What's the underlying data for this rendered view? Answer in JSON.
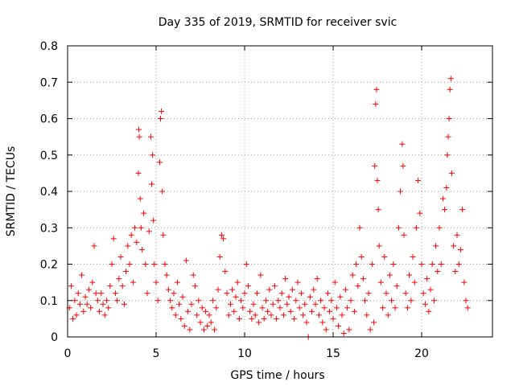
{
  "chart_data": {
    "type": "scatter",
    "title": "Day 335 of 2019, SRMTID for receiver svic",
    "xlabel": "GPS time / hours",
    "ylabel": "SRMTID / TECUs",
    "xlim": [
      0,
      24
    ],
    "ylim": [
      0,
      0.8
    ],
    "xticks": [
      0,
      5,
      10,
      15,
      20
    ],
    "xtick_labels": [
      "0",
      "5",
      "10",
      "15",
      "20"
    ],
    "yticks": [
      0,
      0.1,
      0.2,
      0.3,
      0.4,
      0.5,
      0.6,
      0.7,
      0.8
    ],
    "ytick_labels": [
      "0",
      "0.1",
      "0.2",
      "0.3",
      "0.4",
      "0.5",
      "0.6",
      "0.7",
      "0.8"
    ],
    "grid": true,
    "marker": "+",
    "color": "#ff0000",
    "series": [
      {
        "name": "SRMTID",
        "points": [
          [
            0.1,
            0.08
          ],
          [
            0.2,
            0.14
          ],
          [
            0.3,
            0.05
          ],
          [
            0.4,
            0.1
          ],
          [
            0.5,
            0.06
          ],
          [
            0.6,
            0.12
          ],
          [
            0.7,
            0.09
          ],
          [
            0.8,
            0.17
          ],
          [
            0.9,
            0.07
          ],
          [
            1.0,
            0.11
          ],
          [
            1.1,
            0.09
          ],
          [
            1.2,
            0.13
          ],
          [
            1.3,
            0.08
          ],
          [
            1.4,
            0.15
          ],
          [
            1.5,
            0.25
          ],
          [
            1.6,
            0.12
          ],
          [
            1.7,
            0.1
          ],
          [
            1.8,
            0.07
          ],
          [
            1.9,
            0.12
          ],
          [
            2.0,
            0.09
          ],
          [
            2.1,
            0.06
          ],
          [
            2.2,
            0.1
          ],
          [
            2.3,
            0.08
          ],
          [
            2.4,
            0.14
          ],
          [
            2.5,
            0.2
          ],
          [
            2.6,
            0.27
          ],
          [
            2.7,
            0.12
          ],
          [
            2.8,
            0.1
          ],
          [
            2.9,
            0.16
          ],
          [
            3.0,
            0.22
          ],
          [
            3.1,
            0.14
          ],
          [
            3.2,
            0.09
          ],
          [
            3.3,
            0.18
          ],
          [
            3.4,
            0.25
          ],
          [
            3.5,
            0.2
          ],
          [
            3.6,
            0.28
          ],
          [
            3.7,
            0.15
          ],
          [
            3.8,
            0.3
          ],
          [
            3.9,
            0.26
          ],
          [
            4.0,
            0.45
          ],
          [
            4.02,
            0.57
          ],
          [
            4.05,
            0.55
          ],
          [
            4.1,
            0.38
          ],
          [
            4.15,
            0.3
          ],
          [
            4.2,
            0.24
          ],
          [
            4.3,
            0.34
          ],
          [
            4.4,
            0.2
          ],
          [
            4.5,
            0.12
          ],
          [
            4.6,
            0.29
          ],
          [
            4.7,
            0.55
          ],
          [
            4.75,
            0.42
          ],
          [
            4.8,
            0.5
          ],
          [
            4.85,
            0.32
          ],
          [
            4.9,
            0.2
          ],
          [
            5.0,
            0.15
          ],
          [
            5.1,
            0.1
          ],
          [
            5.2,
            0.48
          ],
          [
            5.25,
            0.6
          ],
          [
            5.3,
            0.62
          ],
          [
            5.35,
            0.4
          ],
          [
            5.4,
            0.28
          ],
          [
            5.5,
            0.2
          ],
          [
            5.6,
            0.17
          ],
          [
            5.7,
            0.13
          ],
          [
            5.8,
            0.1
          ],
          [
            5.9,
            0.08
          ],
          [
            6.0,
            0.12
          ],
          [
            6.1,
            0.06
          ],
          [
            6.2,
            0.15
          ],
          [
            6.3,
            0.09
          ],
          [
            6.4,
            0.05
          ],
          [
            6.5,
            0.11
          ],
          [
            6.6,
            0.03
          ],
          [
            6.7,
            0.21
          ],
          [
            6.8,
            0.07
          ],
          [
            6.9,
            0.02
          ],
          [
            7.0,
            0.09
          ],
          [
            7.1,
            0.17
          ],
          [
            7.2,
            0.14
          ],
          [
            7.3,
            0.06
          ],
          [
            7.4,
            0.1
          ],
          [
            7.5,
            0.04
          ],
          [
            7.6,
            0.08
          ],
          [
            7.7,
            0.02
          ],
          [
            7.8,
            0.07
          ],
          [
            7.9,
            0.03
          ],
          [
            8.0,
            0.06
          ],
          [
            8.1,
            0.04
          ],
          [
            8.2,
            0.1
          ],
          [
            8.3,
            0.02
          ],
          [
            8.4,
            0.08
          ],
          [
            8.5,
            0.13
          ],
          [
            8.6,
            0.22
          ],
          [
            8.7,
            0.28
          ],
          [
            8.8,
            0.27
          ],
          [
            8.9,
            0.18
          ],
          [
            9.0,
            0.12
          ],
          [
            9.1,
            0.06
          ],
          [
            9.2,
            0.09
          ],
          [
            9.3,
            0.13
          ],
          [
            9.4,
            0.07
          ],
          [
            9.5,
            0.11
          ],
          [
            9.6,
            0.15
          ],
          [
            9.7,
            0.05
          ],
          [
            9.8,
            0.1
          ],
          [
            9.9,
            0.08
          ],
          [
            10.0,
            0.12
          ],
          [
            10.1,
            0.2
          ],
          [
            10.2,
            0.14
          ],
          [
            10.3,
            0.07
          ],
          [
            10.4,
            0.05
          ],
          [
            10.5,
            0.09
          ],
          [
            10.6,
            0.06
          ],
          [
            10.7,
            0.12
          ],
          [
            10.8,
            0.04
          ],
          [
            10.9,
            0.17
          ],
          [
            11.0,
            0.08
          ],
          [
            11.1,
            0.05
          ],
          [
            11.2,
            0.1
          ],
          [
            11.3,
            0.07
          ],
          [
            11.4,
            0.13
          ],
          [
            11.5,
            0.06
          ],
          [
            11.6,
            0.09
          ],
          [
            11.7,
            0.14
          ],
          [
            11.8,
            0.05
          ],
          [
            11.9,
            0.1
          ],
          [
            12.0,
            0.08
          ],
          [
            12.1,
            0.12
          ],
          [
            12.2,
            0.06
          ],
          [
            12.3,
            0.16
          ],
          [
            12.4,
            0.09
          ],
          [
            12.5,
            0.11
          ],
          [
            12.6,
            0.07
          ],
          [
            12.7,
            0.13
          ],
          [
            12.8,
            0.05
          ],
          [
            12.9,
            0.1
          ],
          [
            13.0,
            0.15
          ],
          [
            13.1,
            0.08
          ],
          [
            13.2,
            0.12
          ],
          [
            13.3,
            0.06
          ],
          [
            13.4,
            0.09
          ],
          [
            13.5,
            0.04
          ],
          [
            13.6,
            0.0
          ],
          [
            13.7,
            0.11
          ],
          [
            13.8,
            0.07
          ],
          [
            13.9,
            0.13
          ],
          [
            14.0,
            0.09
          ],
          [
            14.1,
            0.16
          ],
          [
            14.2,
            0.06
          ],
          [
            14.3,
            0.1
          ],
          [
            14.4,
            0.04
          ],
          [
            14.5,
            0.08
          ],
          [
            14.6,
            0.02
          ],
          [
            14.7,
            0.12
          ],
          [
            14.8,
            0.07
          ],
          [
            14.9,
            0.1
          ],
          [
            15.0,
            0.05
          ],
          [
            15.1,
            0.15
          ],
          [
            15.2,
            0.08
          ],
          [
            15.3,
            0.03
          ],
          [
            15.4,
            0.11
          ],
          [
            15.5,
            0.06
          ],
          [
            15.6,
            0.01
          ],
          [
            15.7,
            0.13
          ],
          [
            15.8,
            0.08
          ],
          [
            15.9,
            0.02
          ],
          [
            16.0,
            0.1
          ],
          [
            16.1,
            0.17
          ],
          [
            16.2,
            0.07
          ],
          [
            16.3,
            0.2
          ],
          [
            16.4,
            0.14
          ],
          [
            16.5,
            0.3
          ],
          [
            16.6,
            0.22
          ],
          [
            16.7,
            0.16
          ],
          [
            16.8,
            0.1
          ],
          [
            16.9,
            0.06
          ],
          [
            17.0,
            0.12
          ],
          [
            17.1,
            0.02
          ],
          [
            17.2,
            0.2
          ],
          [
            17.3,
            0.04
          ],
          [
            17.35,
            0.47
          ],
          [
            17.4,
            0.64
          ],
          [
            17.45,
            0.68
          ],
          [
            17.5,
            0.43
          ],
          [
            17.55,
            0.35
          ],
          [
            17.6,
            0.25
          ],
          [
            17.7,
            0.15
          ],
          [
            17.8,
            0.08
          ],
          [
            17.9,
            0.22
          ],
          [
            18.0,
            0.12
          ],
          [
            18.1,
            0.06
          ],
          [
            18.2,
            0.17
          ],
          [
            18.3,
            0.1
          ],
          [
            18.4,
            0.2
          ],
          [
            18.5,
            0.08
          ],
          [
            18.6,
            0.14
          ],
          [
            18.7,
            0.3
          ],
          [
            18.8,
            0.4
          ],
          [
            18.9,
            0.53
          ],
          [
            18.95,
            0.47
          ],
          [
            19.0,
            0.28
          ],
          [
            19.1,
            0.12
          ],
          [
            19.2,
            0.08
          ],
          [
            19.3,
            0.17
          ],
          [
            19.4,
            0.1
          ],
          [
            19.5,
            0.22
          ],
          [
            19.6,
            0.15
          ],
          [
            19.7,
            0.3
          ],
          [
            19.8,
            0.43
          ],
          [
            19.9,
            0.34
          ],
          [
            20.0,
            0.2
          ],
          [
            20.1,
            0.12
          ],
          [
            20.2,
            0.09
          ],
          [
            20.3,
            0.16
          ],
          [
            20.4,
            0.07
          ],
          [
            20.5,
            0.13
          ],
          [
            20.6,
            0.2
          ],
          [
            20.7,
            0.1
          ],
          [
            20.8,
            0.25
          ],
          [
            20.9,
            0.18
          ],
          [
            21.0,
            0.3
          ],
          [
            21.1,
            0.2
          ],
          [
            21.2,
            0.38
          ],
          [
            21.3,
            0.35
          ],
          [
            21.4,
            0.41
          ],
          [
            21.45,
            0.5
          ],
          [
            21.5,
            0.55
          ],
          [
            21.55,
            0.6
          ],
          [
            21.6,
            0.68
          ],
          [
            21.65,
            0.71
          ],
          [
            21.7,
            0.45
          ],
          [
            21.8,
            0.25
          ],
          [
            21.9,
            0.18
          ],
          [
            22.0,
            0.28
          ],
          [
            22.1,
            0.2
          ],
          [
            22.2,
            0.24
          ],
          [
            22.3,
            0.35
          ],
          [
            22.4,
            0.15
          ],
          [
            22.5,
            0.1
          ],
          [
            22.6,
            0.08
          ]
        ]
      }
    ]
  }
}
